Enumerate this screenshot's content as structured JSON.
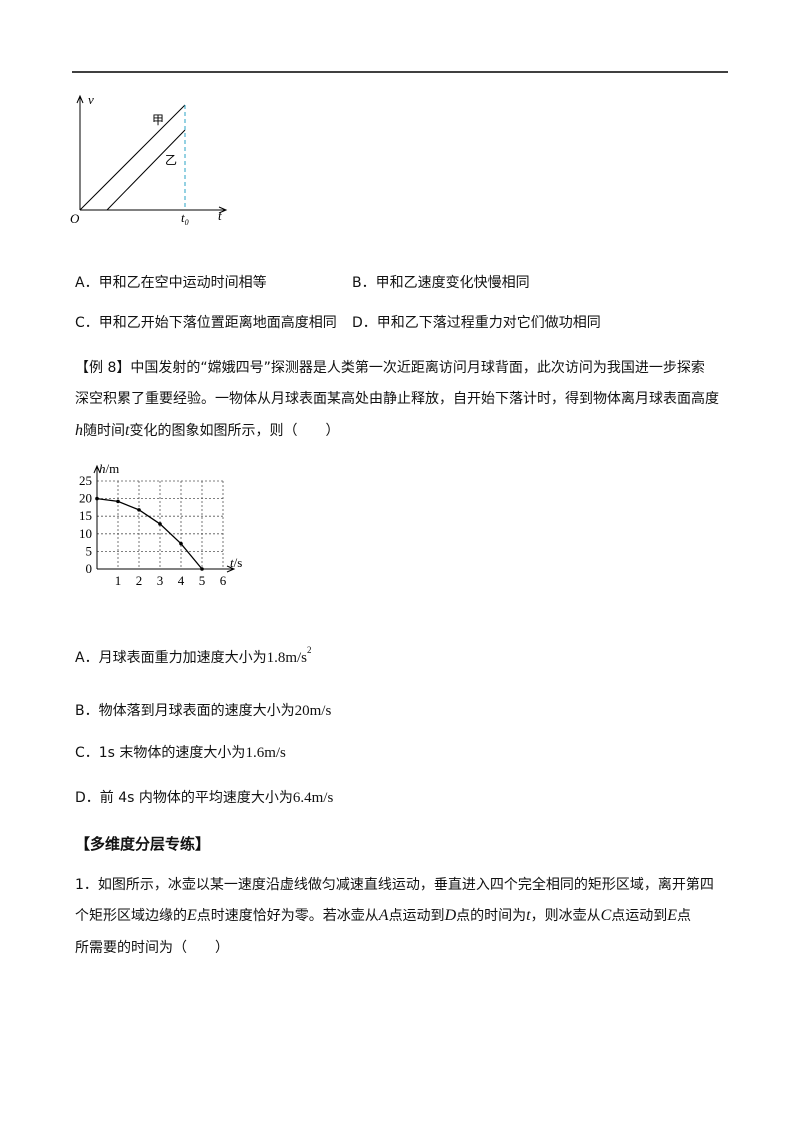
{
  "figure1": {
    "v_axis": "v",
    "line_a": "甲",
    "line_b": "乙",
    "origin": "O",
    "t0": "t",
    "t0_sub": "0",
    "t_axis": "t"
  },
  "options1": [
    "A．甲和乙在空中运动时间相等",
    "B．甲和乙速度变化快慢相同",
    "C．甲和乙开始下落位置距离地面高度相同",
    "D．甲和乙下落过程重力对它们做功相同"
  ],
  "example8": [
    [
      {
        "text": "【例 8】中国发射的“嫦娥四号”探测器是人类第一次近距离访问月球背面，此次访问为我国进一步探索"
      }
    ],
    [
      {
        "text": "深空积累了重要经验。一物体从月球表面某高处由静止释放，自开始下落计时，得到物体离月球表面高度"
      }
    ],
    [
      {
        "text": "h",
        "style": "var"
      },
      {
        "text": "随时间"
      },
      {
        "text": "t",
        "style": "var"
      },
      {
        "text": "变化的图象如图所示，则（　　）"
      }
    ]
  ],
  "figure2": {
    "type": "line",
    "ylabel": [
      {
        "text": "h",
        "style": "var"
      },
      {
        "text": "/m"
      }
    ],
    "xlabel": [
      {
        "text": "t",
        "style": "var"
      },
      {
        "text": "/s"
      }
    ],
    "x": [
      0,
      1,
      2,
      3,
      4,
      5
    ],
    "values": [
      20,
      19.2,
      16.8,
      12.8,
      7.2,
      0
    ],
    "xlim": [
      0,
      6
    ],
    "ylim": [
      0,
      25
    ],
    "xticks": [
      1,
      2,
      3,
      4,
      5,
      6
    ],
    "yticks": [
      0,
      5,
      10,
      15,
      20,
      25
    ],
    "grid": true
  },
  "options2": [
    [
      {
        "text": "A．月球表面重力加速度大小为"
      },
      {
        "text": "1.8m/s",
        "style": "math"
      },
      {
        "text": "2",
        "style": "sup"
      }
    ],
    [
      {
        "text": "B．物体落到月球表面的速度大小为"
      },
      {
        "text": "20m/s",
        "style": "math"
      }
    ],
    [
      {
        "text": "C．1s 末物体的速度大小为"
      },
      {
        "text": "1.6m/s",
        "style": "math"
      }
    ],
    [
      {
        "text": "D．前 4s 内物体的平均速度大小为"
      },
      {
        "text": "6.4m/s",
        "style": "math"
      }
    ]
  ],
  "section": "【多维度分层专练】",
  "question1": [
    [
      {
        "text": "1．如图所示，冰壶以某一速度沿虚线做匀减速直线运动，垂直进入四个完全相同的矩形区域，离开第四"
      }
    ],
    [
      {
        "text": "个矩形区域边缘的"
      },
      {
        "text": "E",
        "style": "var"
      },
      {
        "text": "点时速度恰好为零。若冰壶从"
      },
      {
        "text": "A",
        "style": "var"
      },
      {
        "text": "点运动到"
      },
      {
        "text": "D",
        "style": "var"
      },
      {
        "text": "点的时间为"
      },
      {
        "text": "t",
        "style": "var"
      },
      {
        "text": "，则冰壶从"
      },
      {
        "text": "C",
        "style": "var"
      },
      {
        "text": "点运动到"
      },
      {
        "text": "E",
        "style": "var"
      },
      {
        "text": "点"
      }
    ],
    [
      {
        "text": "所需要的时间为（　　）"
      }
    ]
  ]
}
